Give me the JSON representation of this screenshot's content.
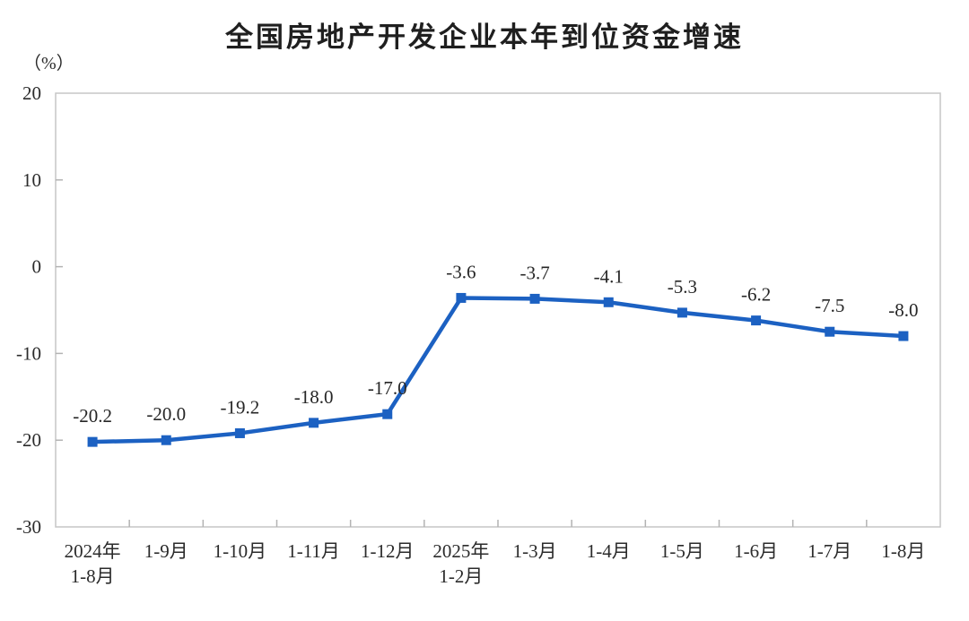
{
  "header": {
    "title": "全国房地产开发企业本年到位资金增速"
  },
  "chart_data": {
    "type": "line",
    "title": "全国房地产开发企业本年到位资金增速",
    "unit_label": "（%）",
    "categories": [
      [
        "2024年",
        "1-8月"
      ],
      [
        "1-9月"
      ],
      [
        "1-10月"
      ],
      [
        "1-11月"
      ],
      [
        "1-12月"
      ],
      [
        "2025年",
        "1-2月"
      ],
      [
        "1-3月"
      ],
      [
        "1-4月"
      ],
      [
        "1-5月"
      ],
      [
        "1-6月"
      ],
      [
        "1-7月"
      ],
      [
        "1-8月"
      ]
    ],
    "series": [
      {
        "name": "本年到位资金增速",
        "values": [
          -20.2,
          -20.0,
          -19.2,
          -18.0,
          -17.0,
          -3.6,
          -3.7,
          -4.1,
          -5.3,
          -6.2,
          -7.5,
          -8.0
        ]
      }
    ],
    "data_labels": [
      "-20.2",
      "-20.0",
      "-19.2",
      "-18.0",
      "-17.0",
      "-3.6",
      "-3.7",
      "-4.1",
      "-5.3",
      "-6.2",
      "-7.5",
      "-8.0"
    ],
    "ylim": [
      -30,
      20
    ],
    "yticks": [
      20,
      10,
      0,
      -10,
      -20,
      -30
    ],
    "xlabel": "",
    "ylabel": "（%）",
    "grid": false,
    "legend": "none",
    "colors": {
      "line": "#1C61C2",
      "marker": "#1C61C2",
      "axis_border": "#c6c6c6",
      "tick_mark": "#b3b3b3",
      "text": "#2b2b2b"
    },
    "marker_shape": "square"
  }
}
